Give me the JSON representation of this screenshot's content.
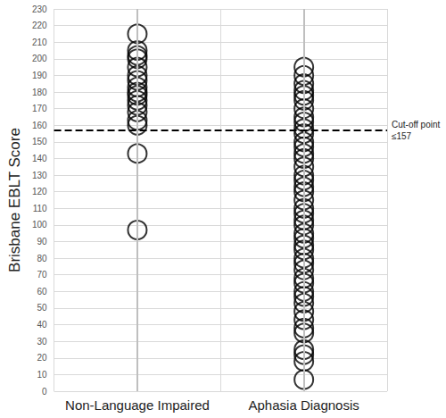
{
  "chart_data": {
    "type": "scatter",
    "y_label": "Brisbane EBLT Score",
    "categories": [
      "Non-Language Impaired",
      "Aphasia Diagnosis"
    ],
    "values": [
      [
        215,
        205,
        202,
        200,
        195,
        190,
        187,
        183,
        180,
        178,
        175,
        172,
        168,
        163,
        160,
        143,
        97
      ],
      [
        195,
        190,
        185,
        181,
        178,
        175,
        170,
        165,
        162,
        158,
        155,
        150,
        147,
        143,
        140,
        135,
        130,
        127,
        123,
        120,
        115,
        110,
        107,
        103,
        100,
        95,
        92,
        88,
        85,
        80,
        77,
        73,
        68,
        65,
        60,
        57,
        53,
        48,
        43,
        38,
        35,
        25,
        22,
        18,
        7
      ]
    ],
    "color": "#000000",
    "marker": "open_circle",
    "ylim": [
      0,
      230
    ],
    "yticks": [
      0,
      10,
      20,
      30,
      40,
      50,
      60,
      70,
      80,
      90,
      100,
      110,
      120,
      130,
      140,
      150,
      160,
      170,
      180,
      190,
      200,
      210,
      220,
      230
    ],
    "grid": true,
    "annotation": {
      "text": "Cut-off point ≤157",
      "y": 157,
      "line_style": "dashed"
    }
  }
}
